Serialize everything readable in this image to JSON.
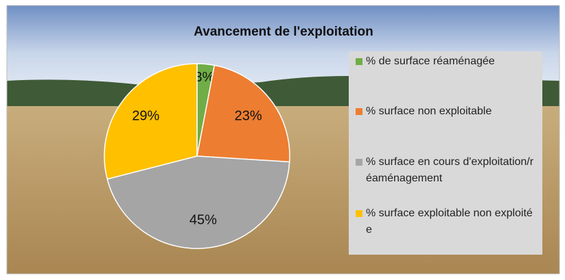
{
  "chart_data": {
    "type": "pie",
    "title": "Avancement de l'exploitation",
    "categories": [
      "% de surface réaménagée",
      "% surface non exploitable",
      "% surface en cours d'exploitation/réaménagement",
      "% surface exploitable non exploitée"
    ],
    "values": [
      3,
      23,
      45,
      29
    ],
    "value_labels": [
      "3%",
      "23%",
      "45%",
      "29%"
    ],
    "colors": [
      "#70ad47",
      "#ed7d31",
      "#a5a5a5",
      "#ffc000"
    ],
    "legend": "right"
  }
}
